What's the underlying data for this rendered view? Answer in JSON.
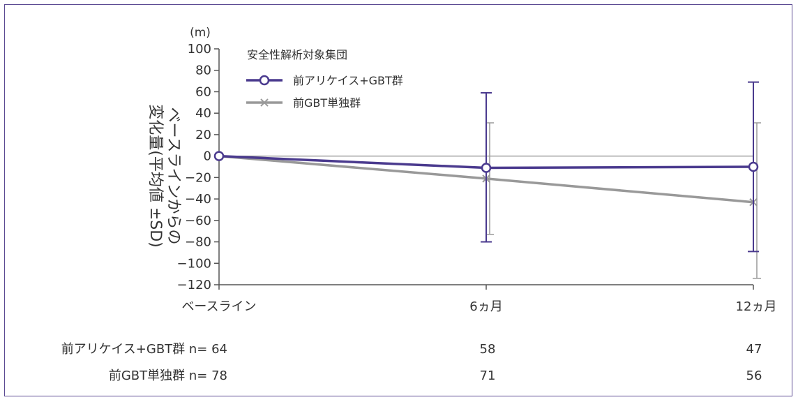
{
  "chart_data": {
    "type": "line",
    "unit": "(m)",
    "ylabel_lines": [
      "ベースラインからの",
      "変化量(平均値 ±SD)"
    ],
    "categories": [
      "ベースライン",
      "6ヵ月",
      "12ヵ月"
    ],
    "ylim": [
      -120,
      100
    ],
    "yticks": [
      100,
      80,
      60,
      40,
      20,
      0,
      -20,
      -40,
      -60,
      -80,
      -100,
      -120
    ],
    "ytick_labels": [
      "100",
      "80",
      "60",
      "40",
      "20",
      "0",
      "−20",
      "−40",
      "−60",
      "−80",
      "−100",
      "−120"
    ],
    "zero_line": true,
    "legend": {
      "title": "安全性解析対象集団",
      "placement": "top-left"
    },
    "series": [
      {
        "name": "前アリケイス+GBT群",
        "color": "#4a3a8e",
        "marker": "circle",
        "values": [
          0,
          -11,
          -10
        ],
        "err_upper": [
          null,
          59,
          69
        ],
        "err_lower": [
          null,
          -80,
          -89
        ]
      },
      {
        "name": "前GBT単独群",
        "color": "#999999",
        "marker": "x",
        "values": [
          0,
          -21,
          -43
        ],
        "err_upper": [
          null,
          31,
          31
        ],
        "err_lower": [
          null,
          -73,
          -114
        ]
      }
    ],
    "n_table": {
      "rows": [
        {
          "label": "前アリケイス+GBT群 n= 64",
          "values": [
            "58",
            "47"
          ]
        },
        {
          "label": "前GBT単独群 n= 78",
          "values": [
            "71",
            "56"
          ]
        }
      ]
    }
  }
}
